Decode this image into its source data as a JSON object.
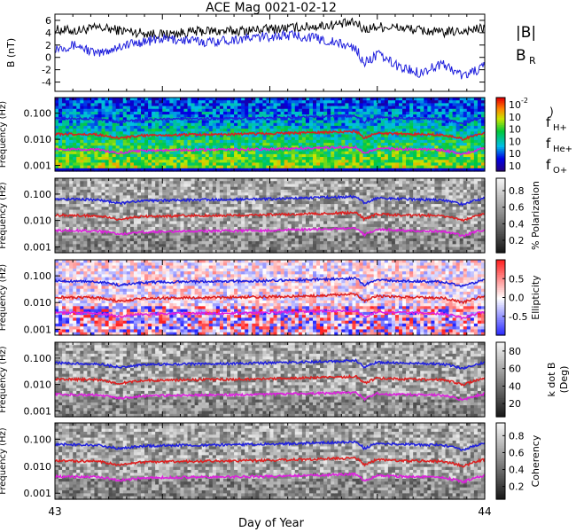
{
  "chart_data": {
    "title": "ACE Mag 0021-02-12",
    "type": "line",
    "xlabel": "Day of Year",
    "x_ticks": [
      "43",
      "44"
    ],
    "xlim": [
      43,
      44
    ],
    "panels": [
      {
        "type": "line",
        "ylabel": "B (nT)",
        "ylim": [
          -5.5,
          7
        ],
        "y_ticks": [
          "6",
          "4",
          "2",
          "0",
          "-2",
          "-4"
        ],
        "y_tick_values": [
          6,
          4,
          2,
          0,
          -2,
          -4
        ],
        "legend": [
          {
            "label": "|B|",
            "color": "#000000"
          },
          {
            "label": "B",
            "sub": "R",
            "color": "#1f1fdd"
          }
        ],
        "series": [
          {
            "name": "|B|",
            "color": "#000000",
            "x": [
              43.0,
              43.05,
              43.1,
              43.15,
              43.2,
              43.25,
              43.3,
              43.35,
              43.4,
              43.45,
              43.5,
              43.55,
              43.6,
              43.65,
              43.7,
              43.72,
              43.75,
              43.8,
              43.85,
              43.9,
              43.95,
              44.0
            ],
            "y": [
              4.5,
              4.3,
              4.8,
              4.4,
              4.0,
              3.7,
              4.0,
              4.3,
              4.2,
              4.4,
              4.6,
              4.8,
              5.0,
              5.3,
              5.6,
              4.5,
              5.0,
              4.8,
              4.4,
              4.0,
              4.3,
              4.7
            ]
          },
          {
            "name": "B",
            "color": "#1f1fdd",
            "x": [
              43.0,
              43.05,
              43.1,
              43.15,
              43.2,
              43.25,
              43.3,
              43.35,
              43.4,
              43.45,
              43.5,
              43.55,
              43.6,
              43.65,
              43.7,
              43.72,
              43.75,
              43.8,
              43.85,
              43.9,
              43.95,
              44.0
            ],
            "y": [
              1.5,
              2.0,
              0.5,
              1.8,
              2.5,
              3.0,
              2.8,
              2.5,
              2.8,
              3.1,
              3.4,
              3.6,
              3.2,
              2.4,
              1.5,
              -1.0,
              0.5,
              -1.5,
              -2.5,
              -1.0,
              -3.0,
              -1.5
            ]
          }
        ]
      },
      {
        "type": "heatmap",
        "ylabel": "Frequency (Hz)",
        "colorbar_label": "",
        "colorbar_ticks": [
          "10",
          "10",
          "10",
          "10",
          "10",
          "10"
        ],
        "colorbar_tick_exponents": [
          "-2",
          "",
          "",
          "",
          "",
          ""
        ],
        "colorbar_style": "spectral"
      },
      {
        "type": "heatmap",
        "ylabel": "Frequency (Hz)",
        "colorbar_label": "% Polarization",
        "colorbar_ticks": [
          "0.8",
          "0.6",
          "0.4",
          "0.2"
        ],
        "colorbar_tick_values": [
          0.8,
          0.6,
          0.4,
          0.2
        ],
        "colorbar_range": [
          0.05,
          0.95
        ],
        "colorbar_style": "gray"
      },
      {
        "type": "heatmap",
        "ylabel": "Frequency (Hz)",
        "colorbar_label": "Ellipticity",
        "colorbar_ticks": [
          "0.5",
          "0.0",
          "-0.5"
        ],
        "colorbar_tick_values": [
          0.5,
          0.0,
          -0.5
        ],
        "colorbar_range": [
          -1,
          1
        ],
        "colorbar_style": "redblue"
      },
      {
        "type": "heatmap",
        "ylabel": "Frequency (Hz)",
        "colorbar_label": "k dot B",
        "colorbar_label2": "(Deg)",
        "colorbar_ticks": [
          "80",
          "60",
          "40",
          "20"
        ],
        "colorbar_tick_values": [
          80,
          60,
          40,
          20
        ],
        "colorbar_range": [
          5,
          90
        ],
        "colorbar_style": "gray"
      },
      {
        "type": "heatmap",
        "ylabel": "Frequency (Hz)",
        "colorbar_label": "Coherency",
        "colorbar_ticks": [
          "0.8",
          "0.6",
          "0.4",
          "0.2"
        ],
        "colorbar_tick_values": [
          0.8,
          0.6,
          0.4,
          0.2
        ],
        "colorbar_range": [
          0.05,
          0.95
        ],
        "colorbar_style": "gray"
      }
    ],
    "freq_y_ticks": [
      "0.100",
      "0.010",
      "0.001"
    ],
    "freq_y_tick_values": [
      0.1,
      0.01,
      0.001
    ],
    "freq_ylim": [
      0.0006,
      0.4
    ],
    "gyro_legend": [
      {
        "label": "f",
        "sub": "H+",
        "color": "#1f1fdd"
      },
      {
        "label": "f",
        "sub": "He+",
        "color": "#dd1f1f"
      },
      {
        "label": "f",
        "sub": "O+",
        "color": "#dd1fdd"
      }
    ],
    "gyro_lines": [
      {
        "name": "fH+",
        "color": "#1f1fdd",
        "x": [
          43.0,
          43.1,
          43.15,
          43.2,
          43.3,
          43.4,
          43.5,
          43.6,
          43.7,
          43.72,
          43.75,
          43.8,
          43.9,
          43.95,
          44.0
        ],
        "y": [
          0.065,
          0.06,
          0.045,
          0.055,
          0.06,
          0.062,
          0.066,
          0.072,
          0.08,
          0.045,
          0.07,
          0.065,
          0.06,
          0.04,
          0.07
        ]
      },
      {
        "name": "fHe+",
        "color": "#dd1f1f",
        "x": [
          43.0,
          43.1,
          43.15,
          43.2,
          43.3,
          43.4,
          43.5,
          43.6,
          43.7,
          43.72,
          43.75,
          43.8,
          43.9,
          43.95,
          44.0
        ],
        "y": [
          0.016,
          0.015,
          0.011,
          0.014,
          0.015,
          0.0155,
          0.0165,
          0.018,
          0.02,
          0.011,
          0.0175,
          0.016,
          0.015,
          0.01,
          0.0175
        ]
      },
      {
        "name": "fO+",
        "color": "#dd1fdd",
        "x": [
          43.0,
          43.1,
          43.15,
          43.2,
          43.3,
          43.4,
          43.5,
          43.6,
          43.7,
          43.72,
          43.75,
          43.8,
          43.9,
          43.95,
          44.0
        ],
        "y": [
          0.0042,
          0.004,
          0.003,
          0.0036,
          0.0039,
          0.004,
          0.0042,
          0.0046,
          0.005,
          0.0028,
          0.0045,
          0.0042,
          0.0039,
          0.0026,
          0.0045
        ]
      }
    ]
  }
}
